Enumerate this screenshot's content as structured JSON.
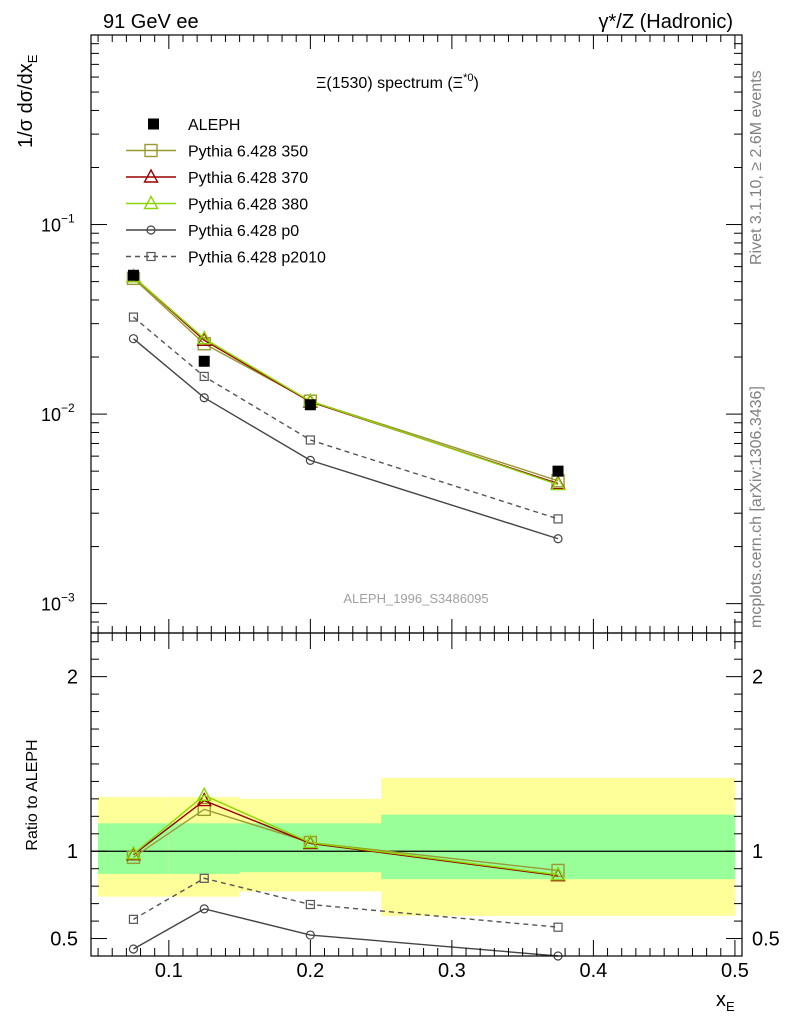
{
  "header": {
    "left": "91 GeV ee",
    "right": "γ*/Z (Hadronic)"
  },
  "side_labels": {
    "rivet": "Rivet 3.1.10, ≥ 2.6M events",
    "mcplots": "mcplots.cern.ch [arXiv:1306.3436]"
  },
  "chart_data": [
    {
      "type": "line",
      "title": "Ξ(1530) spectrum (Ξ*0)",
      "title_parts": {
        "main": "Ξ(1530) spectrum (Ξ",
        "sup": "*0",
        "close": ")"
      },
      "watermark": "ALEPH_1996_S3486095",
      "ylabel": "1/σ dσ/dx_E",
      "ylabel_parts": {
        "main": "1/σ dσ/dx",
        "sub": "E"
      },
      "yscale": "log",
      "ylim": [
        0.0007,
        1.0
      ],
      "xlim": [
        0.045,
        0.505
      ],
      "yticks": [
        {
          "value": 0.1,
          "base": "10",
          "exp": "−1"
        },
        {
          "value": 0.01,
          "base": "10",
          "exp": "−2"
        },
        {
          "value": 0.001,
          "base": "10",
          "exp": "−3"
        }
      ],
      "legend_position": "top-left",
      "data": {
        "name": "ALEPH",
        "x": [
          0.075,
          0.125,
          0.2,
          0.375
        ],
        "y": [
          0.054,
          0.019,
          0.0112,
          0.005
        ],
        "bins": [
          [
            0.05,
            0.1
          ],
          [
            0.1,
            0.15
          ],
          [
            0.15,
            0.25
          ],
          [
            0.25,
            0.5
          ]
        ]
      },
      "series": [
        {
          "name": "Pythia 6.428 350",
          "color": "#999933",
          "marker": "square",
          "dash": false,
          "x": [
            0.075,
            0.125,
            0.2,
            0.375
          ],
          "y": [
            0.052,
            0.0235,
            0.0117,
            0.00445
          ]
        },
        {
          "name": "Pythia 6.428 370",
          "color": "#990000",
          "marker": "triangle",
          "dash": false,
          "x": [
            0.075,
            0.125,
            0.2,
            0.375
          ],
          "y": [
            0.053,
            0.0245,
            0.0116,
            0.0043
          ]
        },
        {
          "name": "Pythia 6.428 380",
          "color": "#8cd600",
          "marker": "triangle",
          "dash": false,
          "x": [
            0.075,
            0.125,
            0.2,
            0.375
          ],
          "y": [
            0.053,
            0.025,
            0.0117,
            0.00425
          ]
        },
        {
          "name": "Pythia 6.428 p0",
          "color": "#444444",
          "marker": "circle",
          "dash": false,
          "x": [
            0.075,
            0.125,
            0.2,
            0.375
          ],
          "y": [
            0.025,
            0.0122,
            0.0057,
            0.0022
          ]
        },
        {
          "name": "Pythia 6.428 p2010",
          "color": "#555555",
          "marker": "square-small",
          "dash": true,
          "x": [
            0.075,
            0.125,
            0.2,
            0.375
          ],
          "y": [
            0.0325,
            0.0158,
            0.0073,
            0.0028
          ]
        }
      ]
    },
    {
      "type": "line",
      "ylabel": "Ratio to ALEPH",
      "xlabel": "x_E",
      "xlabel_parts": {
        "main": "x",
        "sub": "E"
      },
      "ylim": [
        0.4,
        2.25
      ],
      "xlim": [
        0.045,
        0.505
      ],
      "yticks": [
        0.5,
        1,
        2
      ],
      "ytick_labels": [
        "0.5",
        "1",
        "2"
      ],
      "xticks": [
        0.1,
        0.2,
        0.3,
        0.4,
        0.5
      ],
      "xtick_labels": [
        "0.1",
        "0.2",
        "0.3",
        "0.4",
        "0.5"
      ],
      "reference_line": 1,
      "bands": {
        "bins": [
          [
            0.05,
            0.1
          ],
          [
            0.1,
            0.15
          ],
          [
            0.15,
            0.25
          ],
          [
            0.25,
            0.5
          ]
        ],
        "outer": [
          [
            0.74,
            1.31
          ],
          [
            0.74,
            1.31
          ],
          [
            0.77,
            1.3
          ],
          [
            0.63,
            1.42
          ]
        ],
        "inner": [
          [
            0.87,
            1.16
          ],
          [
            0.87,
            1.16
          ],
          [
            0.88,
            1.16
          ],
          [
            0.84,
            1.21
          ]
        ],
        "outer_color": "#ffff99",
        "inner_color": "#99ff99"
      },
      "series": [
        {
          "name": "Pythia 6.428 350",
          "color": "#999933",
          "marker": "square",
          "dash": false,
          "x": [
            0.075,
            0.125,
            0.2,
            0.375
          ],
          "y": [
            0.965,
            1.24,
            1.05,
            0.89
          ]
        },
        {
          "name": "Pythia 6.428 370",
          "color": "#990000",
          "marker": "triangle",
          "dash": false,
          "x": [
            0.075,
            0.125,
            0.2,
            0.375
          ],
          "y": [
            0.98,
            1.29,
            1.045,
            0.86
          ]
        },
        {
          "name": "Pythia 6.428 380",
          "color": "#8cd600",
          "marker": "triangle",
          "dash": false,
          "x": [
            0.075,
            0.125,
            0.2,
            0.375
          ],
          "y": [
            0.985,
            1.32,
            1.05,
            0.865
          ]
        },
        {
          "name": "Pythia 6.428 p0",
          "color": "#444444",
          "marker": "circle",
          "dash": false,
          "x": [
            0.075,
            0.125,
            0.2,
            0.375
          ],
          "y": [
            0.44,
            0.67,
            0.52,
            0.4
          ]
        },
        {
          "name": "Pythia 6.428 p2010",
          "color": "#555555",
          "marker": "square-small",
          "dash": true,
          "x": [
            0.075,
            0.125,
            0.2,
            0.375
          ],
          "y": [
            0.61,
            0.845,
            0.695,
            0.565
          ]
        }
      ]
    }
  ]
}
